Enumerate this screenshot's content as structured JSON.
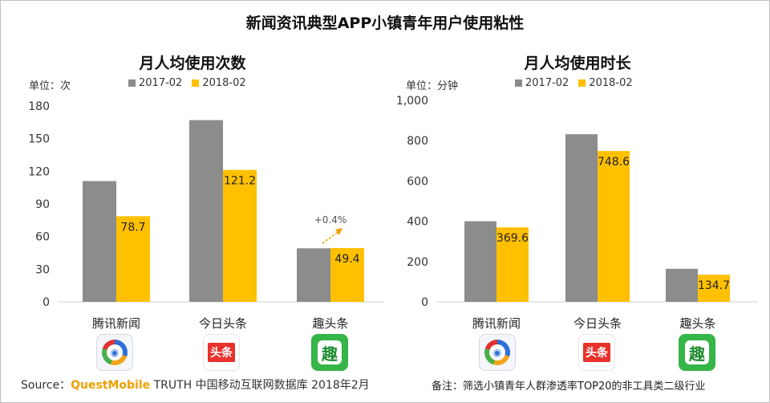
{
  "main_title": "新闻资讯典型APP小镇青年用户使用粘性",
  "colors": {
    "series_2017": "#8c8c8c",
    "series_2018": "#ffc000",
    "axis": "#d0d0d0"
  },
  "chart_data": [
    {
      "type": "bar",
      "title": "月人均使用次数",
      "unit_label": "单位：次",
      "categories": [
        "腾讯新闻",
        "今日头条",
        "趣头条"
      ],
      "series": [
        {
          "name": "2017-02",
          "values": [
            111,
            167,
            49.2
          ]
        },
        {
          "name": "2018-02",
          "values": [
            78.7,
            121.2,
            49.4
          ]
        }
      ],
      "data_labels_2018": [
        "78.7",
        "121.2",
        "49.4"
      ],
      "ylim": [
        0,
        180
      ],
      "yticks": [
        0,
        30,
        60,
        90,
        120,
        150,
        180
      ],
      "ytick_labels": [
        "0",
        "30",
        "60",
        "90",
        "120",
        "150",
        "180"
      ],
      "annotation": {
        "text": "+0.4%",
        "category_index": 2
      },
      "legend": "top"
    },
    {
      "type": "bar",
      "title": "月人均使用时长",
      "unit_label": "单位：分钟",
      "categories": [
        "腾讯新闻",
        "今日头条",
        "趣头条"
      ],
      "series": [
        {
          "name": "2017-02",
          "values": [
            400,
            832,
            164
          ]
        },
        {
          "name": "2018-02",
          "values": [
            369.6,
            748.6,
            134.7
          ]
        }
      ],
      "data_labels_2018": [
        "369.6",
        "748.6",
        "134.7"
      ],
      "ylim": [
        0,
        1000
      ],
      "yticks": [
        0,
        200,
        400,
        600,
        800,
        1000
      ],
      "ytick_labels": [
        "0",
        "200",
        "400",
        "600",
        "800",
        "1,000"
      ],
      "legend": "top"
    }
  ],
  "app_icons": {
    "tencent": "腾讯新闻-icon",
    "toutiao": "头条",
    "qutoutiao": "趣"
  },
  "footer": {
    "source_prefix": "Source：",
    "source_brand": "QuestMobile",
    "source_suffix": " TRUTH 中国移动互联网数据库 2018年2月",
    "note": "备注：筛选小镇青年人群渗透率TOP20的非工具类二级行业"
  }
}
